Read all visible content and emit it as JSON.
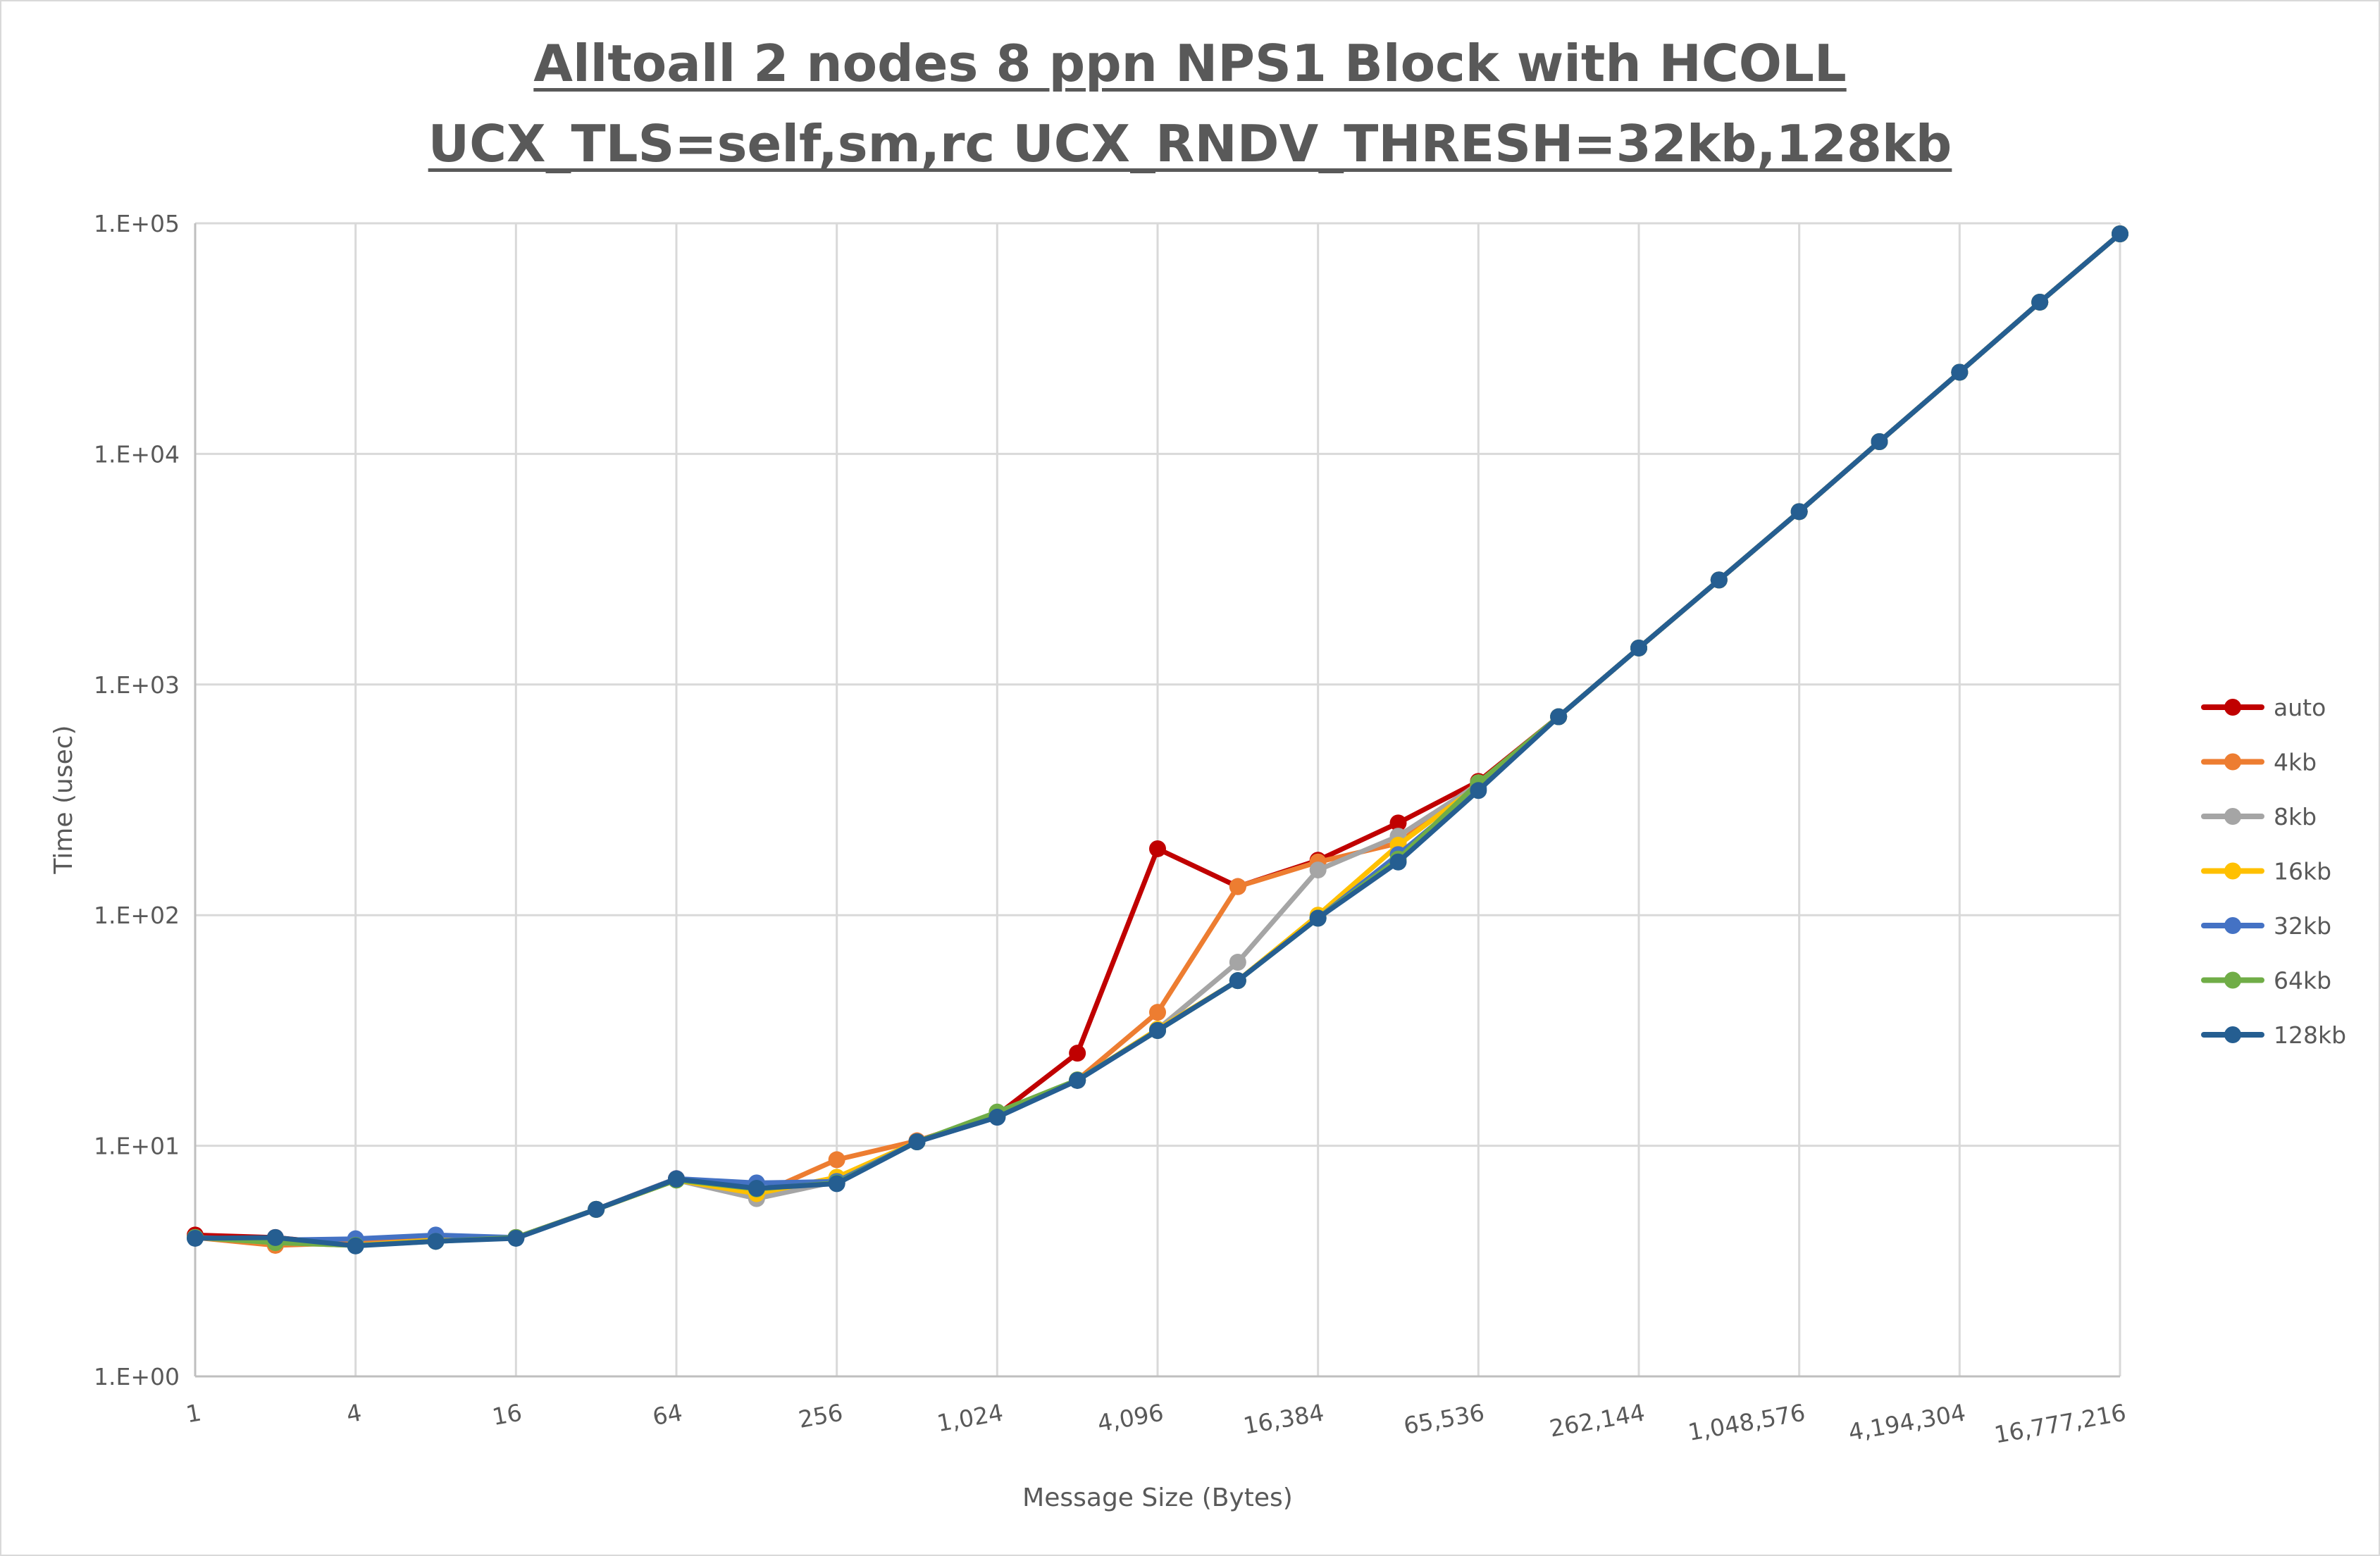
{
  "chart_data": {
    "type": "line",
    "title": [
      "Alltoall 2 nodes 8 ppn NPS1 Block with HCOLL",
      "UCX_TLS=self,sm,rc UCX_RNDV_THRESH=32kb,128kb"
    ],
    "xlabel": "Message Size (Bytes)",
    "ylabel": "Time (usec)",
    "x_scale": "log2",
    "y_scale": "log10",
    "ylim": [
      1,
      100000
    ],
    "grid": true,
    "legend_position": "right",
    "x": [
      1,
      2,
      4,
      8,
      16,
      32,
      64,
      128,
      256,
      512,
      1024,
      2048,
      4096,
      8192,
      16384,
      32768,
      65536,
      131072,
      262144,
      524288,
      1048576,
      2097152,
      4194304,
      8388608,
      16777216
    ],
    "x_tick_labels": [
      "1",
      "4",
      "16",
      "64",
      "256",
      "1,024",
      "4,096",
      "16,384",
      "65,536",
      "262,144",
      "1,048,576",
      "4,194,304",
      "16,777,216"
    ],
    "y_tick_labels": [
      "1.E+00",
      "1.E+01",
      "1.E+02",
      "1.E+03",
      "1.E+04",
      "1.E+05"
    ],
    "series": [
      {
        "name": "auto",
        "color": "#c00000",
        "values": [
          4.1,
          4.0,
          3.7,
          3.9,
          4.0,
          5.3,
          7.2,
          6.4,
          6.9,
          10.5,
          13.6,
          25.2,
          194,
          133,
          173,
          251,
          380,
          725,
          1440,
          2840,
          5620,
          11300,
          22600,
          45500,
          90000
        ]
      },
      {
        "name": "4kb",
        "color": "#ed7d31",
        "values": [
          4.0,
          3.7,
          3.8,
          3.9,
          4.0,
          5.3,
          7.2,
          6.1,
          8.7,
          10.5,
          13.5,
          19.3,
          37.9,
          133,
          170,
          205,
          375,
          725,
          1440,
          2840,
          5620,
          11300,
          22600,
          45500,
          90000
        ]
      },
      {
        "name": "8kb",
        "color": "#a5a5a5",
        "values": [
          4.0,
          3.8,
          3.7,
          3.9,
          4.0,
          5.3,
          7.1,
          5.9,
          7.0,
          10.4,
          13.4,
          19.2,
          32,
          62.5,
          157,
          220,
          370,
          725,
          1440,
          2840,
          5620,
          11300,
          22600,
          45500,
          90000
        ]
      },
      {
        "name": "16kb",
        "color": "#ffc000",
        "values": [
          4.0,
          3.8,
          3.7,
          3.9,
          4.0,
          5.3,
          7.1,
          6.2,
          7.3,
          10.4,
          13.4,
          19.2,
          32,
          52,
          100,
          201,
          365,
          725,
          1440,
          2840,
          5620,
          11300,
          22600,
          45500,
          90000
        ]
      },
      {
        "name": "32kb",
        "color": "#4472c4",
        "values": [
          4.0,
          3.9,
          3.95,
          4.1,
          4.0,
          5.3,
          7.2,
          6.9,
          7.0,
          10.4,
          13.3,
          19.2,
          31.6,
          52,
          97,
          183,
          355,
          725,
          1440,
          2840,
          5620,
          11300,
          22600,
          45500,
          90000
        ]
      },
      {
        "name": "64kb",
        "color": "#70ad47",
        "values": [
          4.0,
          3.8,
          3.7,
          3.85,
          4.0,
          5.3,
          7.1,
          6.5,
          6.9,
          10.4,
          14.0,
          19.3,
          31.6,
          52,
          97,
          175,
          375,
          725,
          1440,
          2840,
          5620,
          11300,
          22600,
          45500,
          90000
        ]
      },
      {
        "name": "128kb",
        "color": "#255e91",
        "values": [
          3.97,
          4.0,
          3.68,
          3.85,
          3.97,
          5.3,
          7.17,
          6.54,
          6.85,
          10.4,
          13.3,
          19.2,
          31.6,
          52,
          97,
          170,
          347,
          725,
          1440,
          2840,
          5620,
          11300,
          22600,
          45500,
          90000
        ]
      }
    ]
  }
}
